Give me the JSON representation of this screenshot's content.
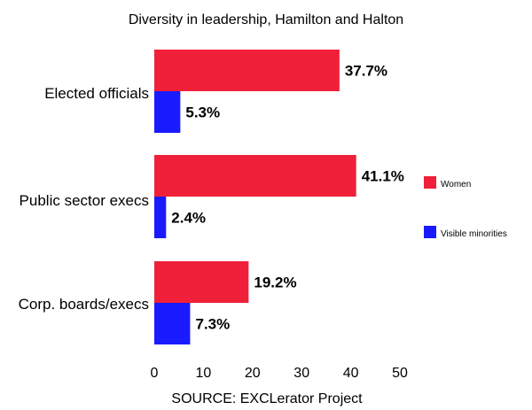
{
  "chart_data": {
    "type": "bar",
    "orientation": "horizontal",
    "title": "Diversity in leadership, Hamilton and Halton",
    "xlabel": "SOURCE: EXCLerator Project",
    "ylabel": "",
    "categories": [
      "Elected officials",
      "Public sector execs",
      "Corp. boards/execs"
    ],
    "series": [
      {
        "name": "Women",
        "color": "#f0203a",
        "values": [
          37.7,
          41.1,
          19.2
        ],
        "labels": [
          "37.7%",
          "41.1%",
          "19.2%"
        ]
      },
      {
        "name": "Visible minorities",
        "color": "#1a1aff",
        "values": [
          5.3,
          2.4,
          7.3
        ],
        "labels": [
          "5.3%",
          "2.4%",
          "7.3%"
        ]
      }
    ],
    "xlim": [
      0,
      50
    ],
    "xticks": [
      "0",
      "10",
      "20",
      "30",
      "40",
      "50"
    ],
    "grid": false,
    "legend_position": "right"
  }
}
